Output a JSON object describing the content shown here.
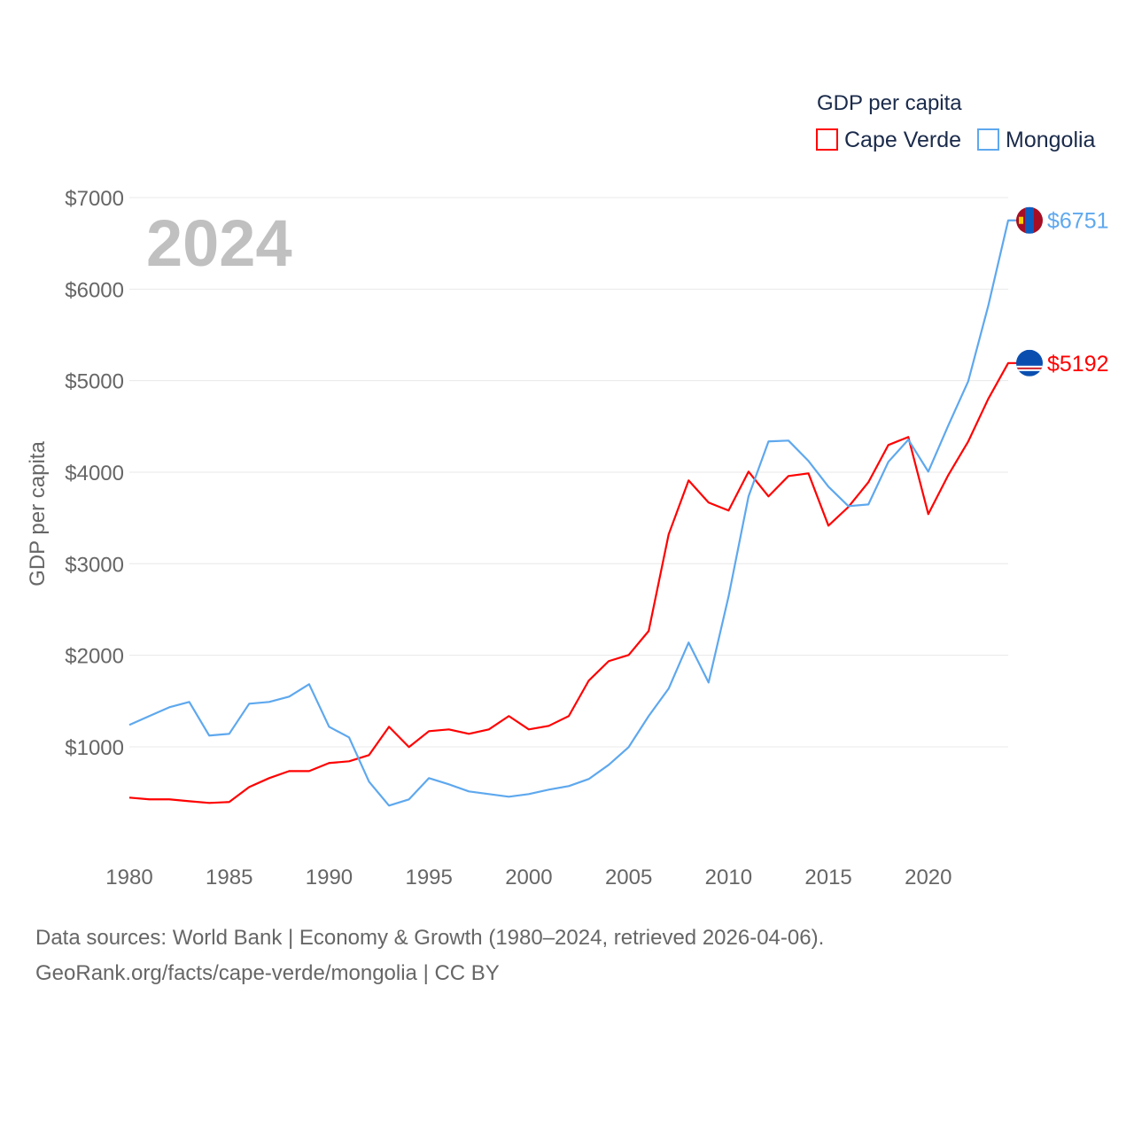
{
  "chart_data": {
    "type": "line",
    "title": "",
    "year_label": "2024",
    "xlabel": "",
    "ylabel": "GDP per capita",
    "xlim": [
      1980,
      2024
    ],
    "ylim": [
      0,
      7000
    ],
    "x_ticks": [
      1980,
      1985,
      1990,
      1995,
      2000,
      2005,
      2010,
      2015,
      2020
    ],
    "y_ticks": [
      1000,
      2000,
      3000,
      4000,
      5000,
      6000,
      7000
    ],
    "y_tick_labels": [
      "$1000",
      "$2000",
      "$3000",
      "$4000",
      "$5000",
      "$6000",
      "$7000"
    ],
    "grid": true,
    "legend": {
      "title": "GDP per capita",
      "position": "top-right"
    },
    "x": [
      1980,
      1981,
      1982,
      1983,
      1984,
      1985,
      1986,
      1987,
      1988,
      1989,
      1990,
      1991,
      1992,
      1993,
      1994,
      1995,
      1996,
      1997,
      1998,
      1999,
      2000,
      2001,
      2002,
      2003,
      2004,
      2005,
      2006,
      2007,
      2008,
      2009,
      2010,
      2011,
      2012,
      2013,
      2014,
      2015,
      2016,
      2017,
      2018,
      2019,
      2020,
      2021,
      2022,
      2023,
      2024
    ],
    "series": [
      {
        "name": "Cape Verde",
        "color": "#ff0000",
        "end_label": "$5192",
        "values": [
          445,
          426,
          426,
          406,
          387,
          397,
          561,
          658,
          735,
          735,
          823,
          842,
          910,
          1219,
          997,
          1171,
          1190,
          1142,
          1190,
          1336,
          1190,
          1229,
          1336,
          1723,
          1936,
          2003,
          2265,
          3320,
          3910,
          3668,
          3581,
          4006,
          3736,
          3958,
          3987,
          3416,
          3620,
          3890,
          4297,
          4384,
          3542,
          3968,
          4336,
          4800,
          5192
        ]
      },
      {
        "name": "Mongolia",
        "color": "#5ea8ee",
        "end_label": "$6751",
        "values": [
          1239,
          1336,
          1432,
          1490,
          1123,
          1142,
          1471,
          1490,
          1548,
          1684,
          1219,
          1103,
          619,
          358,
          426,
          658,
          590,
          513,
          484,
          455,
          484,
          532,
          571,
          648,
          803,
          997,
          1336,
          1636,
          2139,
          1703,
          2642,
          3736,
          4336,
          4345,
          4123,
          3842,
          3629,
          3648,
          4113,
          4355,
          4006,
          4510,
          4994,
          5816,
          6751
        ]
      }
    ]
  },
  "footer": {
    "line1": "Data sources: World Bank | Economy & Growth (1980–2024, retrieved 2026-04-06).",
    "line2": "GeoRank.org/facts/cape-verde/mongolia | CC BY"
  }
}
